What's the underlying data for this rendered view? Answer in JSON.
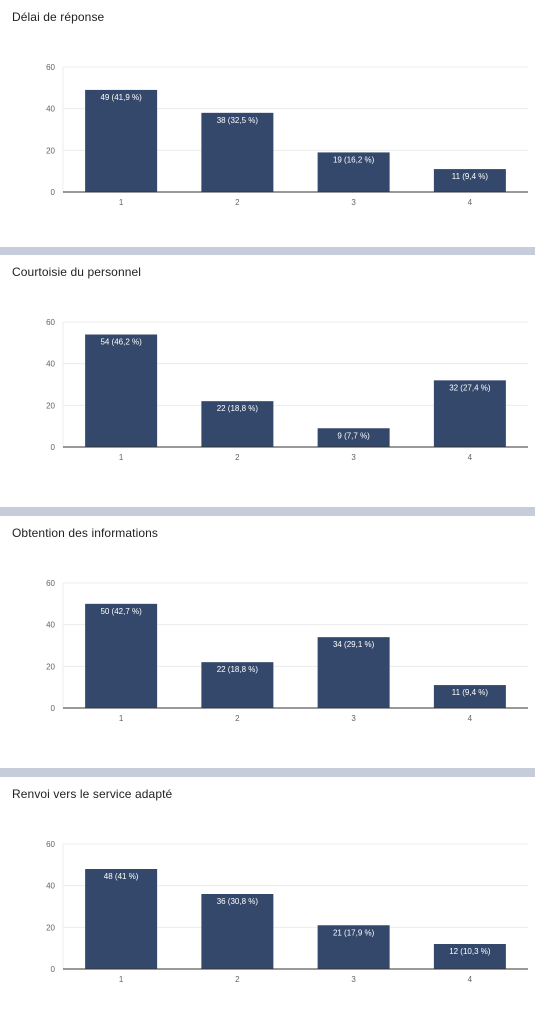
{
  "chart_data": [
    {
      "type": "bar",
      "title": "Délai de réponse",
      "categories": [
        "1",
        "2",
        "3",
        "4"
      ],
      "values": [
        49,
        38,
        19,
        11
      ],
      "data_labels": [
        "49 (41,9 %)",
        "38 (32,5 %)",
        "19 (16,2 %)",
        "11 (9,4 %)"
      ],
      "ylim": [
        0,
        60
      ],
      "yticks": [
        0,
        20,
        40,
        60
      ],
      "grid": true,
      "color": "#34486b"
    },
    {
      "type": "bar",
      "title": "Courtoisie du personnel",
      "categories": [
        "1",
        "2",
        "3",
        "4"
      ],
      "values": [
        54,
        22,
        9,
        32
      ],
      "data_labels": [
        "54 (46,2 %)",
        "22 (18,8 %)",
        "9 (7,7 %)",
        "32 (27,4 %)"
      ],
      "ylim": [
        0,
        60
      ],
      "yticks": [
        0,
        20,
        40,
        60
      ],
      "grid": true,
      "color": "#34486b"
    },
    {
      "type": "bar",
      "title": "Obtention des informations",
      "categories": [
        "1",
        "2",
        "3",
        "4"
      ],
      "values": [
        50,
        22,
        34,
        11
      ],
      "data_labels": [
        "50 (42,7 %)",
        "22 (18,8 %)",
        "34 (29,1 %)",
        "11 (9,4 %)"
      ],
      "ylim": [
        0,
        60
      ],
      "yticks": [
        0,
        20,
        40,
        60
      ],
      "grid": true,
      "color": "#34486b"
    },
    {
      "type": "bar",
      "title": "Renvoi vers le service adapté",
      "categories": [
        "1",
        "2",
        "3",
        "4"
      ],
      "values": [
        48,
        36,
        21,
        12
      ],
      "data_labels": [
        "48 (41 %)",
        "36 (30,8 %)",
        "21 (17,9 %)",
        "12 (10,3 %)"
      ],
      "ylim": [
        0,
        60
      ],
      "yticks": [
        0,
        20,
        40,
        60
      ],
      "grid": true,
      "color": "#34486b"
    }
  ],
  "colors": {
    "bar": "#34486b",
    "divider": "#c7ccdb",
    "grid": "#ececec",
    "axis": "#333333"
  }
}
